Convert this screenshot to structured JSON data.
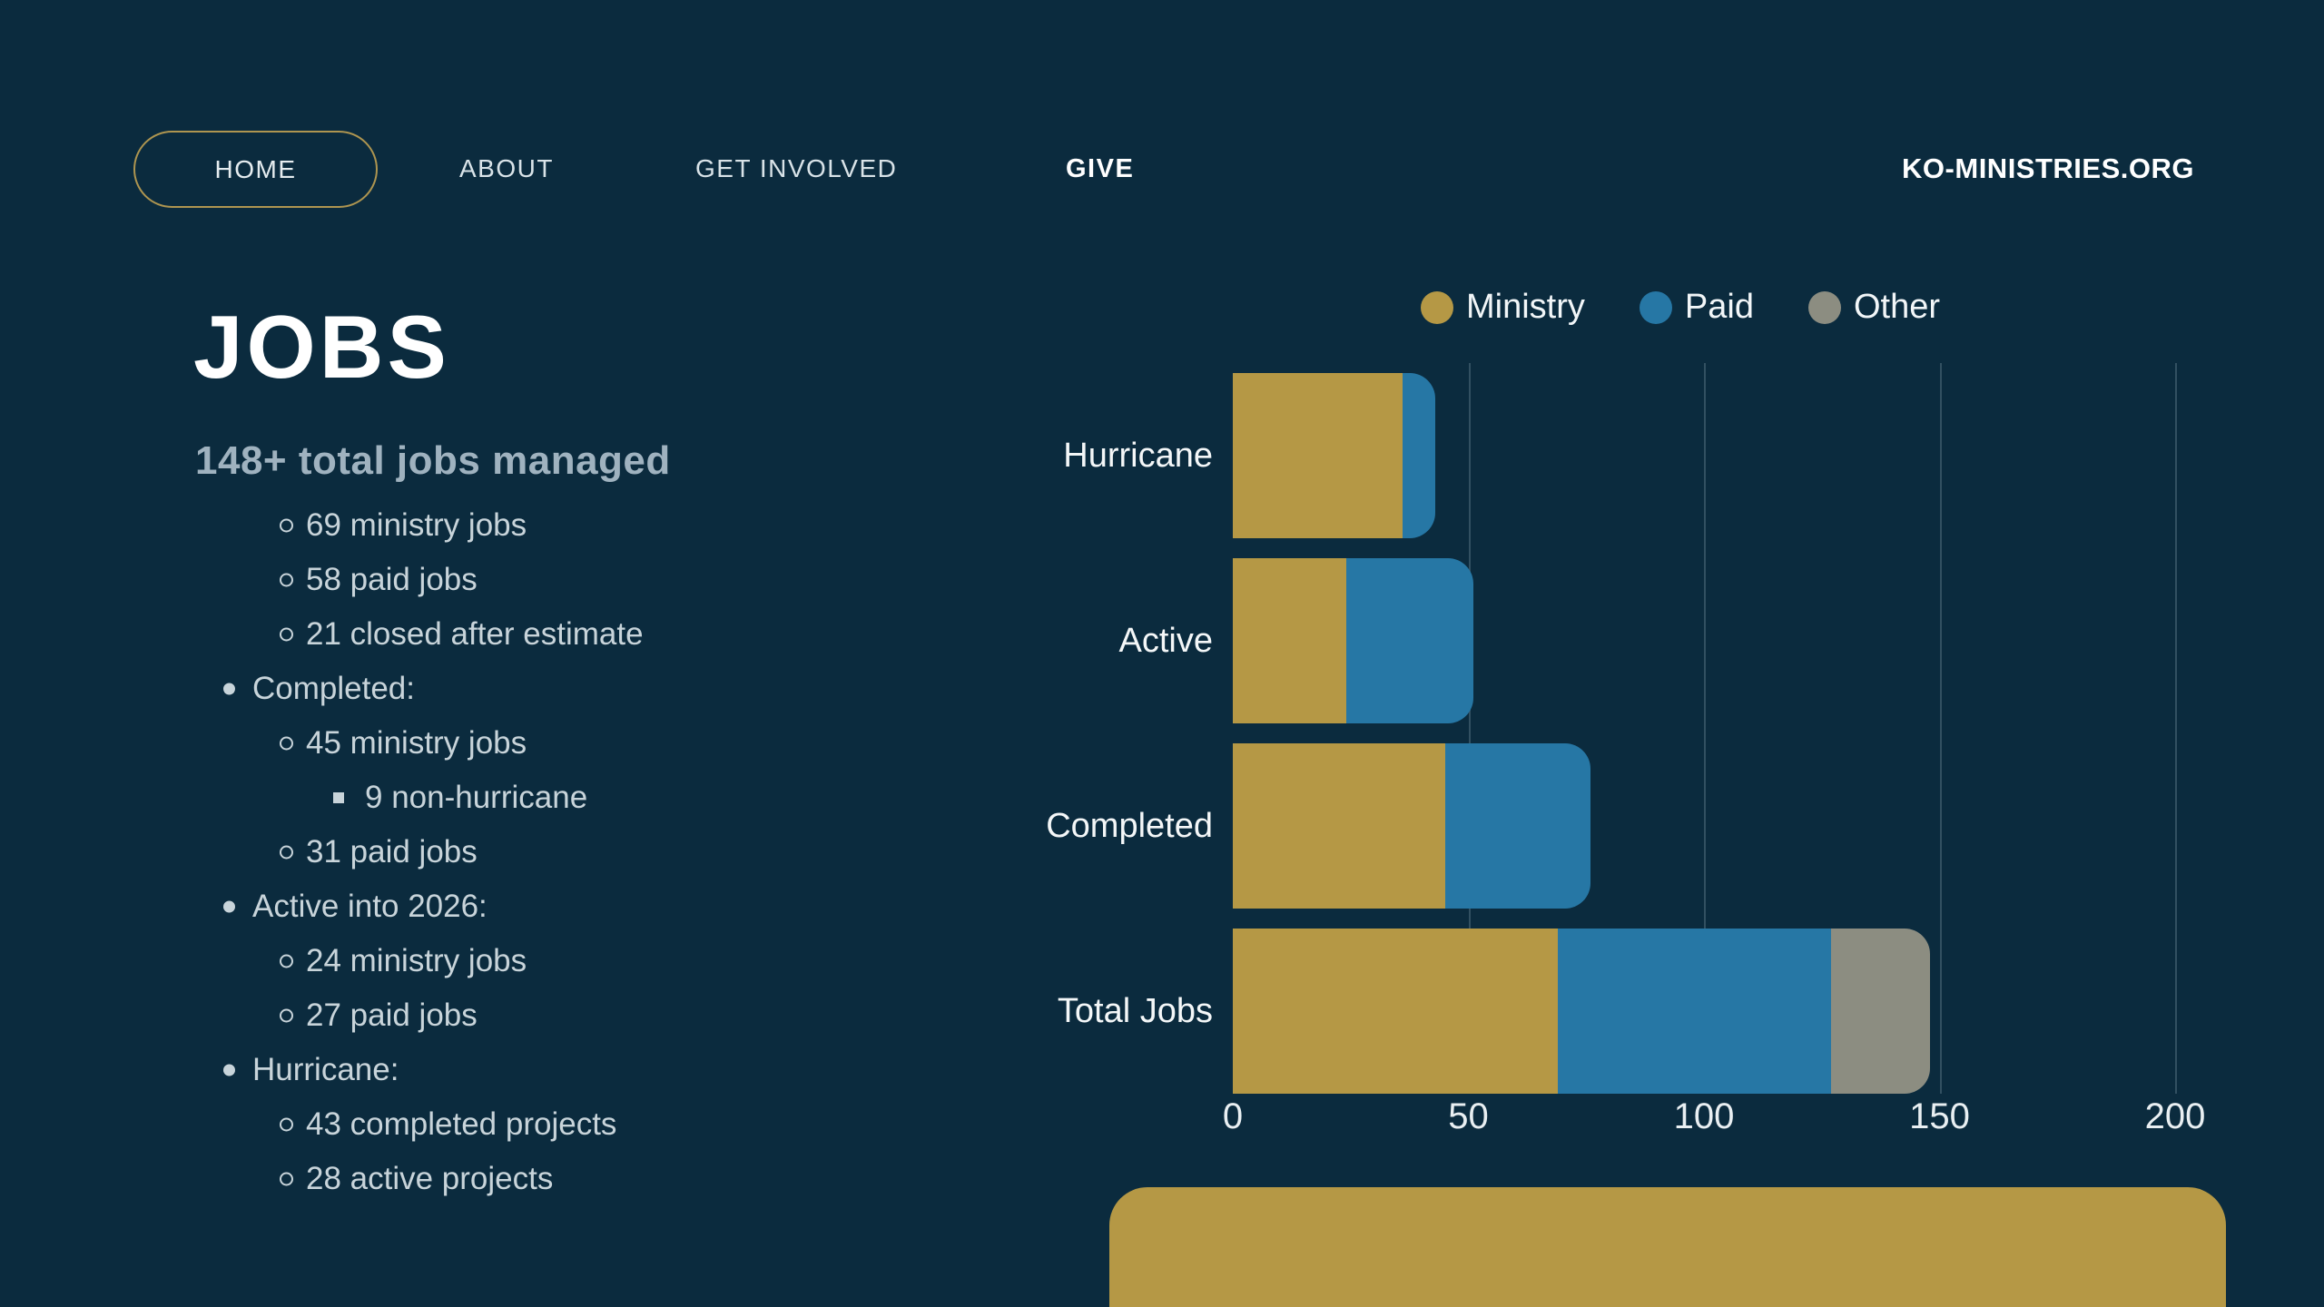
{
  "page": {
    "background": "#0B2B3E"
  },
  "nav": {
    "home": "HOME",
    "about": "ABOUT",
    "get_involved": "GET INVOLVED",
    "give": "GIVE",
    "brand": "KO-MINISTRIES.ORG"
  },
  "hero": {
    "title": "JOBS",
    "subtitle": "148+ total jobs managed",
    "list": [
      {
        "level": 2,
        "text": "69 ministry jobs"
      },
      {
        "level": 2,
        "text": "58 paid jobs"
      },
      {
        "level": 2,
        "text": "21 closed after estimate"
      },
      {
        "level": 1,
        "text": "Completed:"
      },
      {
        "level": 2,
        "text": "45 ministry jobs"
      },
      {
        "level": 3,
        "text": "9 non-hurricane"
      },
      {
        "level": 2,
        "text": "31 paid jobs"
      },
      {
        "level": 1,
        "text": "Active into 2026:"
      },
      {
        "level": 2,
        "text": "24 ministry jobs"
      },
      {
        "level": 2,
        "text": "27 paid jobs"
      },
      {
        "level": 1,
        "text": "Hurricane:"
      },
      {
        "level": 2,
        "text": "43 completed projects"
      },
      {
        "level": 2,
        "text": "28 active projects"
      }
    ]
  },
  "chart_data": {
    "type": "bar",
    "orientation": "horizontal",
    "title": "",
    "categories": [
      "Hurricane",
      "Active",
      "Completed",
      "Total Jobs"
    ],
    "series": [
      {
        "name": "Ministry",
        "color": "#B59845",
        "values": [
          36,
          24,
          45,
          69
        ]
      },
      {
        "name": "Paid",
        "color": "#2677A5",
        "values": [
          7,
          27,
          31,
          58
        ]
      },
      {
        "name": "Other",
        "color": "#8C8D81",
        "values": [
          0,
          0,
          0,
          21
        ]
      }
    ],
    "xlim": [
      0,
      200
    ],
    "xticks": [
      0,
      50,
      100,
      150,
      200
    ],
    "grid": true,
    "legend_position": "top"
  },
  "footer_card": {
    "color": "#B59845"
  }
}
